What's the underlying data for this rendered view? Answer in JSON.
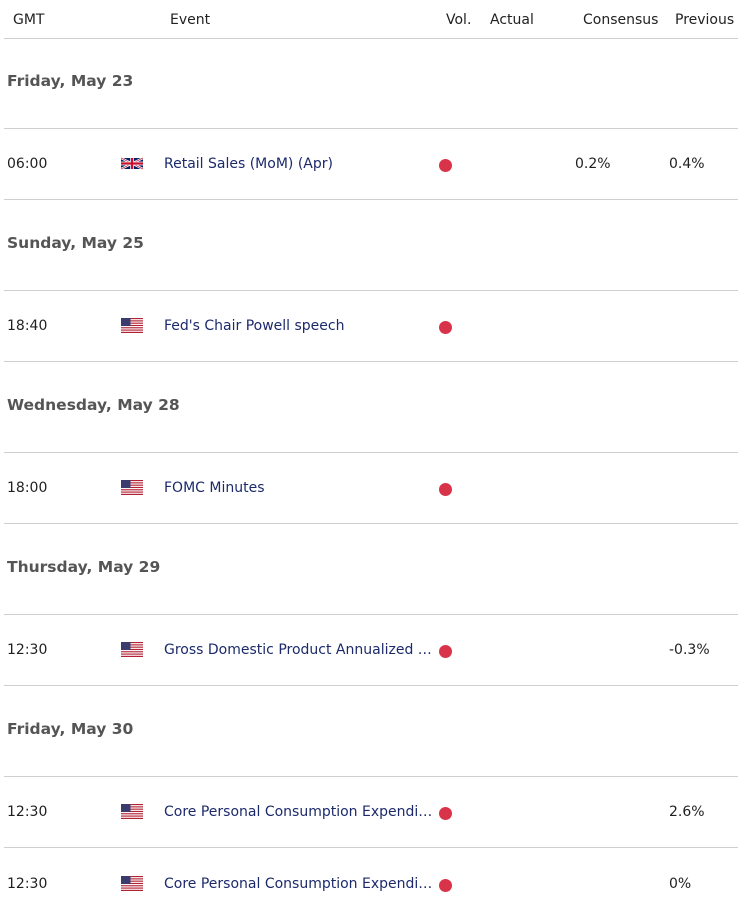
{
  "columns": {
    "gmt": "GMT",
    "event": "Event",
    "vol": "Vol.",
    "actual": "Actual",
    "consensus": "Consensus",
    "previous": "Previous"
  },
  "colors": {
    "volatility_high": "#d9334a",
    "event_link": "#1c2a6b",
    "divider": "#cfcfcf"
  },
  "days": [
    {
      "label": "Friday, May 23",
      "events": [
        {
          "time": "06:00",
          "flag": "uk-flag-icon",
          "name": "Retail Sales (MoM) (Apr)",
          "volatility": "high",
          "actual": "",
          "consensus": "0.2%",
          "previous": "0.4%"
        }
      ]
    },
    {
      "label": "Sunday, May 25",
      "events": [
        {
          "time": "18:40",
          "flag": "us-flag-icon",
          "name": "Fed's Chair Powell speech",
          "volatility": "high",
          "actual": "",
          "consensus": "",
          "previous": ""
        }
      ]
    },
    {
      "label": "Wednesday, May 28",
      "events": [
        {
          "time": "18:00",
          "flag": "us-flag-icon",
          "name": "FOMC Minutes",
          "volatility": "high",
          "actual": "",
          "consensus": "",
          "previous": ""
        }
      ]
    },
    {
      "label": "Thursday, May 29",
      "events": [
        {
          "time": "12:30",
          "flag": "us-flag-icon",
          "name": "Gross Domestic Product Annualized (…",
          "volatility": "high",
          "actual": "",
          "consensus": "",
          "previous": "-0.3%"
        }
      ]
    },
    {
      "label": "Friday, May 30",
      "events": [
        {
          "time": "12:30",
          "flag": "us-flag-icon",
          "name": "Core Personal Consumption Expendit…",
          "volatility": "high",
          "actual": "",
          "consensus": "",
          "previous": "2.6%"
        },
        {
          "time": "12:30",
          "flag": "us-flag-icon",
          "name": "Core Personal Consumption Expendit…",
          "volatility": "high",
          "actual": "",
          "consensus": "",
          "previous": "0%"
        }
      ]
    }
  ]
}
